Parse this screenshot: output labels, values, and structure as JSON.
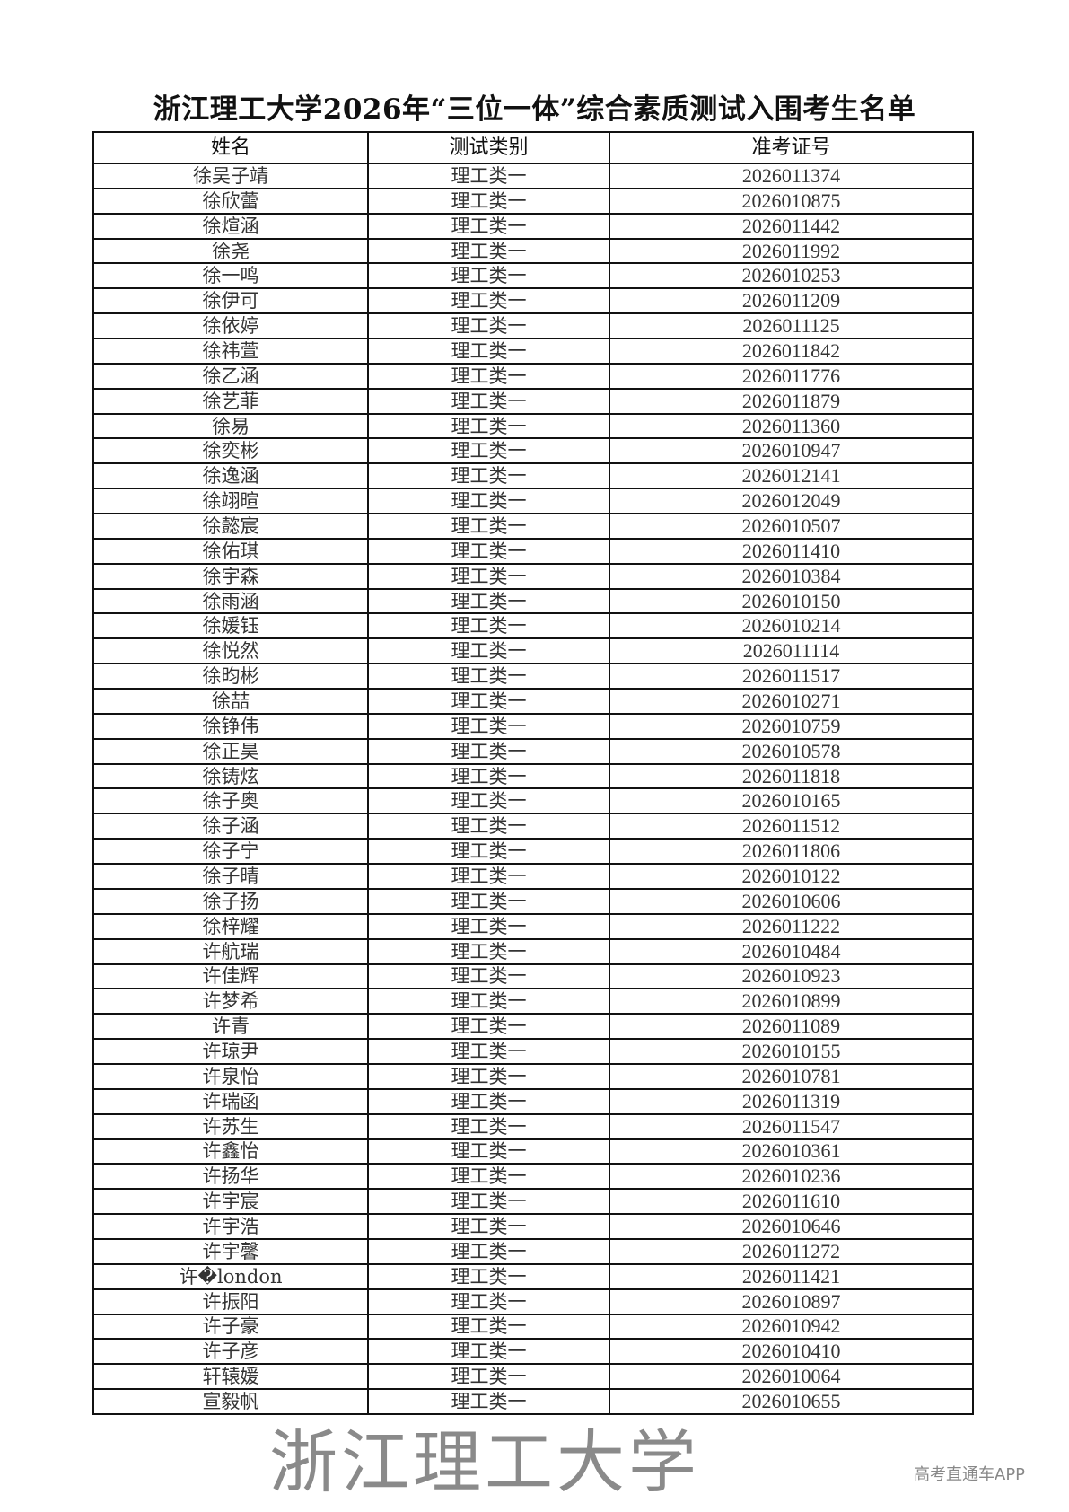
{
  "title": "浙江理工大学2026年“三位一体”综合素质测试入围考生名单",
  "table": {
    "headers": [
      "姓名",
      "测试类别",
      "准考证号"
    ],
    "rows": [
      [
        "徐吴子靖",
        "理工类一",
        "2026011374"
      ],
      [
        "徐欣蕾",
        "理工类一",
        "2026010875"
      ],
      [
        "徐煊涵",
        "理工类一",
        "2026011442"
      ],
      [
        "徐尧",
        "理工类一",
        "2026011992"
      ],
      [
        "徐一鸣",
        "理工类一",
        "2026010253"
      ],
      [
        "徐伊可",
        "理工类一",
        "2026011209"
      ],
      [
        "徐依婷",
        "理工类一",
        "2026011125"
      ],
      [
        "徐祎萱",
        "理工类一",
        "2026011842"
      ],
      [
        "徐乙涵",
        "理工类一",
        "2026011776"
      ],
      [
        "徐艺菲",
        "理工类一",
        "2026011879"
      ],
      [
        "徐易",
        "理工类一",
        "2026011360"
      ],
      [
        "徐奕彬",
        "理工类一",
        "2026010947"
      ],
      [
        "徐逸涵",
        "理工类一",
        "2026012141"
      ],
      [
        "徐翊暄",
        "理工类一",
        "2026012049"
      ],
      [
        "徐懿宸",
        "理工类一",
        "2026010507"
      ],
      [
        "徐佑琪",
        "理工类一",
        "2026011410"
      ],
      [
        "徐宇森",
        "理工类一",
        "2026010384"
      ],
      [
        "徐雨涵",
        "理工类一",
        "2026010150"
      ],
      [
        "徐媛钰",
        "理工类一",
        "2026010214"
      ],
      [
        "徐悦然",
        "理工类一",
        "2026011114"
      ],
      [
        "徐昀彬",
        "理工类一",
        "2026011517"
      ],
      [
        "徐喆",
        "理工类一",
        "2026010271"
      ],
      [
        "徐铮伟",
        "理工类一",
        "2026010759"
      ],
      [
        "徐正昊",
        "理工类一",
        "2026010578"
      ],
      [
        "徐铸炫",
        "理工类一",
        "2026011818"
      ],
      [
        "徐子奥",
        "理工类一",
        "2026010165"
      ],
      [
        "徐子涵",
        "理工类一",
        "2026011512"
      ],
      [
        "徐子宁",
        "理工类一",
        "2026011806"
      ],
      [
        "徐子晴",
        "理工类一",
        "2026010122"
      ],
      [
        "徐子扬",
        "理工类一",
        "2026010606"
      ],
      [
        "徐梓耀",
        "理工类一",
        "2026011222"
      ],
      [
        "许航瑞",
        "理工类一",
        "2026010484"
      ],
      [
        "许佳辉",
        "理工类一",
        "2026010923"
      ],
      [
        "许梦希",
        "理工类一",
        "2026010899"
      ],
      [
        "许青",
        "理工类一",
        "2026011089"
      ],
      [
        "许琼尹",
        "理工类一",
        "2026010155"
      ],
      [
        "许泉怡",
        "理工类一",
        "2026010781"
      ],
      [
        "许瑞函",
        "理工类一",
        "2026011319"
      ],
      [
        "许苏生",
        "理工类一",
        "2026011547"
      ],
      [
        "许鑫怡",
        "理工类一",
        "2026010361"
      ],
      [
        "许扬华",
        "理工类一",
        "2026010236"
      ],
      [
        "许宇宸",
        "理工类一",
        "2026011610"
      ],
      [
        "许宇浩",
        "理工类一",
        "2026010646"
      ],
      [
        "许宇馨",
        "理工类一",
        "2026011272"
      ],
      [
        "许�london",
        "理工类一",
        "2026011421"
      ],
      [
        "许振阳",
        "理工类一",
        "2026010897"
      ],
      [
        "许子豪",
        "理工类一",
        "2026010942"
      ],
      [
        "许子彦",
        "理工类一",
        "2026010410"
      ],
      [
        "轩辕媛",
        "理工类一",
        "2026010064"
      ],
      [
        "宣毅帆",
        "理工类一",
        "2026010655"
      ]
    ]
  },
  "watermark": "浙江理工大学",
  "footer_watermark": "高考直通车APP"
}
